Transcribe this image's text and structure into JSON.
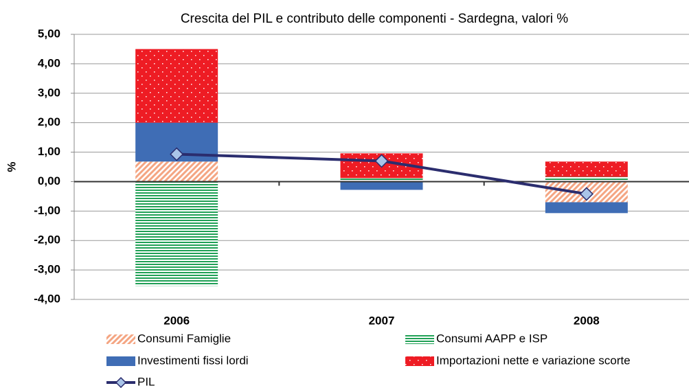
{
  "chart_data": {
    "type": "bar",
    "stacked": true,
    "title": "Crescita del PIL e contributo delle componenti - Sardegna, valori %",
    "ylabel": "%",
    "categories": [
      "2006",
      "2007",
      "2008"
    ],
    "series": [
      {
        "name": "Consumi Famiglie",
        "color": "#f4a582",
        "pattern": "diagonal",
        "values": [
          0.68,
          0.0,
          -0.7
        ]
      },
      {
        "name": "Consumi AAPP e ISP",
        "color": "#1fa055",
        "pattern": "horizontal",
        "values": [
          -3.54,
          0.12,
          0.16
        ]
      },
      {
        "name": "Investimenti fissi lordi",
        "color": "#3f6db5",
        "pattern": "solid",
        "values": [
          1.32,
          -0.28,
          -0.37
        ]
      },
      {
        "name": "Importazioni nette e variazione scorte",
        "color": "#ee1c24",
        "pattern": "dots",
        "values": [
          2.5,
          0.84,
          0.52
        ]
      },
      {
        "name": "PIL",
        "type": "line",
        "color": "#2b2d6e",
        "marker_color": "#a9c4e8",
        "values": [
          0.93,
          0.7,
          -0.42
        ]
      }
    ],
    "ylim": [
      -4,
      5
    ],
    "yticks": [
      {
        "value": -4,
        "label": "-4,00"
      },
      {
        "value": -3,
        "label": "-3,00"
      },
      {
        "value": -2,
        "label": "-2,00"
      },
      {
        "value": -1,
        "label": "-1,00"
      },
      {
        "value": 0,
        "label": "0,00"
      },
      {
        "value": 1,
        "label": "1,00"
      },
      {
        "value": 2,
        "label": "2,00"
      },
      {
        "value": 3,
        "label": "3,00"
      },
      {
        "value": 4,
        "label": "4,00"
      },
      {
        "value": 5,
        "label": "5,00"
      }
    ],
    "grid": true
  }
}
